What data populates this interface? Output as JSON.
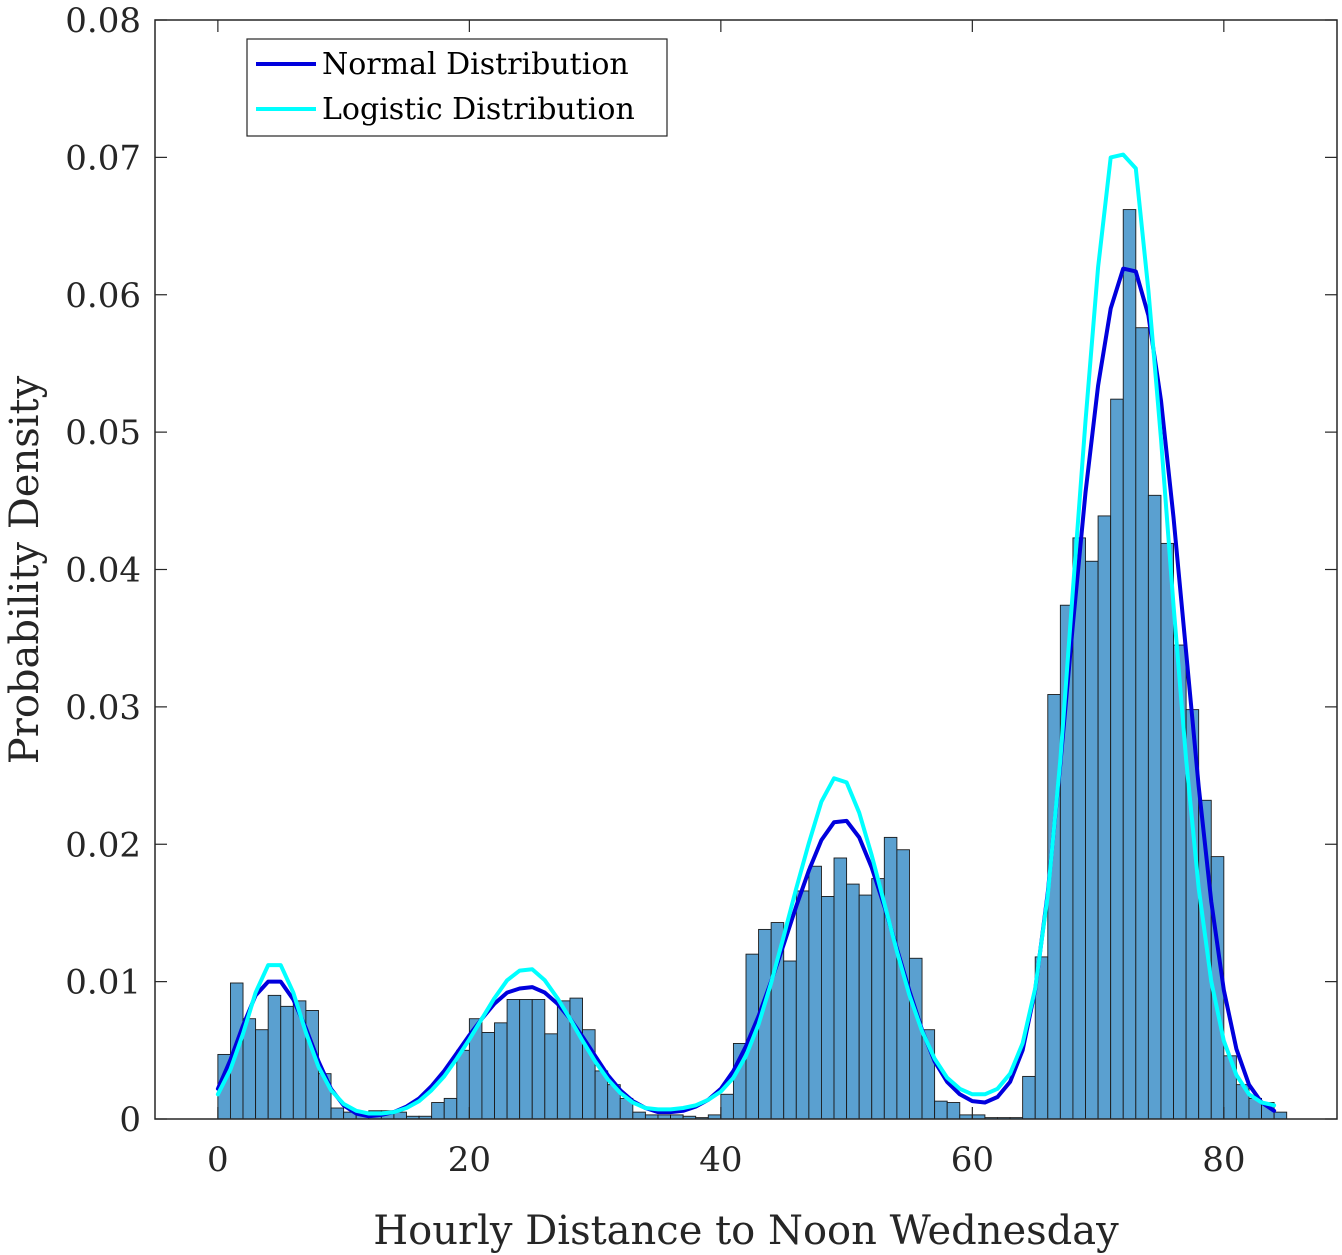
{
  "chart_data": {
    "type": "bar",
    "xlabel": "Hourly Distance to Noon Wednesday",
    "ylabel": "Probability Density",
    "xlim": [
      -5,
      89
    ],
    "ylim": [
      0,
      0.08
    ],
    "x_ticks": [
      0,
      20,
      40,
      60,
      80
    ],
    "x_tick_labels": [
      "0",
      "20",
      "40",
      "60",
      "80"
    ],
    "y_ticks": [
      0,
      0.01,
      0.02,
      0.03,
      0.04,
      0.05,
      0.06,
      0.07,
      0.08
    ],
    "y_tick_labels": [
      "0",
      "0.01",
      "0.02",
      "0.03",
      "0.04",
      "0.05",
      "0.06",
      "0.07",
      "0.08"
    ],
    "grid": false,
    "legend_position": "top-left",
    "colors": {
      "bars": "#5aa0d0",
      "bar_edge": "#1a1a1a",
      "normal": "#0000dd",
      "logistic": "#00ffff",
      "axes": "#262626"
    },
    "histogram": {
      "bin_start": 0,
      "bin_width": 1,
      "densities": [
        0.0047,
        0.0099,
        0.0073,
        0.0065,
        0.009,
        0.0082,
        0.0086,
        0.0079,
        0.0033,
        0.0008,
        0.0005,
        0.0004,
        0.0006,
        0.0006,
        0.0005,
        0.0002,
        0.0002,
        0.0012,
        0.0015,
        0.005,
        0.0073,
        0.0063,
        0.007,
        0.0087,
        0.0087,
        0.0087,
        0.0062,
        0.0086,
        0.0088,
        0.0065,
        0.0035,
        0.0025,
        0.0015,
        0.0005,
        0.0003,
        0.0003,
        0.0003,
        0.0002,
        0.0001,
        0.0003,
        0.0018,
        0.0055,
        0.012,
        0.0138,
        0.0143,
        0.0115,
        0.0166,
        0.0184,
        0.0162,
        0.019,
        0.0171,
        0.0163,
        0.0175,
        0.0205,
        0.0196,
        0.0117,
        0.0065,
        0.0013,
        0.0012,
        0.0003,
        0.0003,
        0.0001,
        0.0001,
        0.0001,
        0.0031,
        0.0118,
        0.0309,
        0.0374,
        0.0423,
        0.0406,
        0.0439,
        0.0524,
        0.0662,
        0.0576,
        0.0454,
        0.0419,
        0.0345,
        0.0298,
        0.0232,
        0.0191,
        0.0046,
        0.0025,
        0.0015,
        0.0012,
        0.0005
      ]
    },
    "series": [
      {
        "name": "Normal Distribution",
        "x": [
          0,
          1,
          2,
          3,
          4,
          5,
          6,
          7,
          8,
          9,
          10,
          11,
          12,
          13,
          14,
          15,
          16,
          17,
          18,
          19,
          20,
          21,
          22,
          23,
          24,
          25,
          26,
          27,
          28,
          29,
          30,
          31,
          32,
          33,
          34,
          35,
          36,
          37,
          38,
          39,
          40,
          41,
          42,
          43,
          44,
          45,
          46,
          47,
          48,
          49,
          50,
          51,
          52,
          53,
          54,
          55,
          56,
          57,
          58,
          59,
          60,
          61,
          62,
          63,
          64,
          65,
          66,
          67,
          68,
          69,
          70,
          71,
          72,
          73,
          74,
          75,
          76,
          77,
          78,
          79,
          80,
          81,
          82,
          83,
          84
        ],
        "values": [
          0.0022,
          0.0043,
          0.0068,
          0.009,
          0.01,
          0.01,
          0.0087,
          0.0066,
          0.0042,
          0.0022,
          0.001,
          0.0004,
          0.0002,
          0.0003,
          0.0005,
          0.0009,
          0.0015,
          0.0024,
          0.0035,
          0.0048,
          0.0061,
          0.0073,
          0.0084,
          0.0092,
          0.0095,
          0.0096,
          0.0092,
          0.0084,
          0.0073,
          0.006,
          0.0046,
          0.0032,
          0.0021,
          0.0013,
          0.0008,
          0.0005,
          0.0005,
          0.0006,
          0.0009,
          0.0014,
          0.0022,
          0.0035,
          0.0053,
          0.0075,
          0.01,
          0.0127,
          0.0155,
          0.0181,
          0.0203,
          0.0216,
          0.0217,
          0.0205,
          0.0183,
          0.0155,
          0.0124,
          0.0093,
          0.0065,
          0.0042,
          0.0027,
          0.0018,
          0.0013,
          0.0012,
          0.0016,
          0.0027,
          0.005,
          0.0094,
          0.0165,
          0.0259,
          0.036,
          0.0456,
          0.0534,
          0.059,
          0.0619,
          0.0617,
          0.0585,
          0.0523,
          0.0438,
          0.034,
          0.0242,
          0.0158,
          0.0094,
          0.0051,
          0.0025,
          0.0012,
          0.0006
        ]
      },
      {
        "name": "Logistic Distribution",
        "x": [
          0,
          1,
          2,
          3,
          4,
          5,
          6,
          7,
          8,
          9,
          10,
          11,
          12,
          13,
          14,
          15,
          16,
          17,
          18,
          19,
          20,
          21,
          22,
          23,
          24,
          25,
          26,
          27,
          28,
          29,
          30,
          31,
          32,
          33,
          34,
          35,
          36,
          37,
          38,
          39,
          40,
          41,
          42,
          43,
          44,
          45,
          46,
          47,
          48,
          49,
          50,
          51,
          52,
          53,
          54,
          55,
          56,
          57,
          58,
          59,
          60,
          61,
          62,
          63,
          64,
          65,
          66,
          67,
          68,
          69,
          70,
          71,
          72,
          73,
          74,
          75,
          76,
          77,
          78,
          79,
          80,
          81,
          82,
          83,
          84
        ],
        "values": [
          0.0018,
          0.0036,
          0.0062,
          0.0092,
          0.0112,
          0.0112,
          0.0092,
          0.0063,
          0.0038,
          0.0021,
          0.0011,
          0.0006,
          0.0004,
          0.0004,
          0.0005,
          0.0008,
          0.0013,
          0.0021,
          0.0031,
          0.0044,
          0.0058,
          0.0073,
          0.0088,
          0.0101,
          0.0108,
          0.0109,
          0.0101,
          0.0088,
          0.0073,
          0.0057,
          0.0042,
          0.0029,
          0.0019,
          0.0012,
          0.0008,
          0.0007,
          0.0007,
          0.0008,
          0.001,
          0.0014,
          0.002,
          0.003,
          0.0046,
          0.0069,
          0.0099,
          0.0133,
          0.0168,
          0.0201,
          0.0231,
          0.0248,
          0.0245,
          0.0223,
          0.0192,
          0.0157,
          0.0122,
          0.009,
          0.0064,
          0.0044,
          0.003,
          0.0022,
          0.0018,
          0.0018,
          0.0022,
          0.0033,
          0.0055,
          0.0095,
          0.0163,
          0.0262,
          0.0385,
          0.0508,
          0.062,
          0.07,
          0.0702,
          0.0692,
          0.0603,
          0.0495,
          0.0374,
          0.0262,
          0.0168,
          0.01,
          0.0057,
          0.0032,
          0.0018,
          0.0012,
          0.001
        ]
      }
    ]
  }
}
